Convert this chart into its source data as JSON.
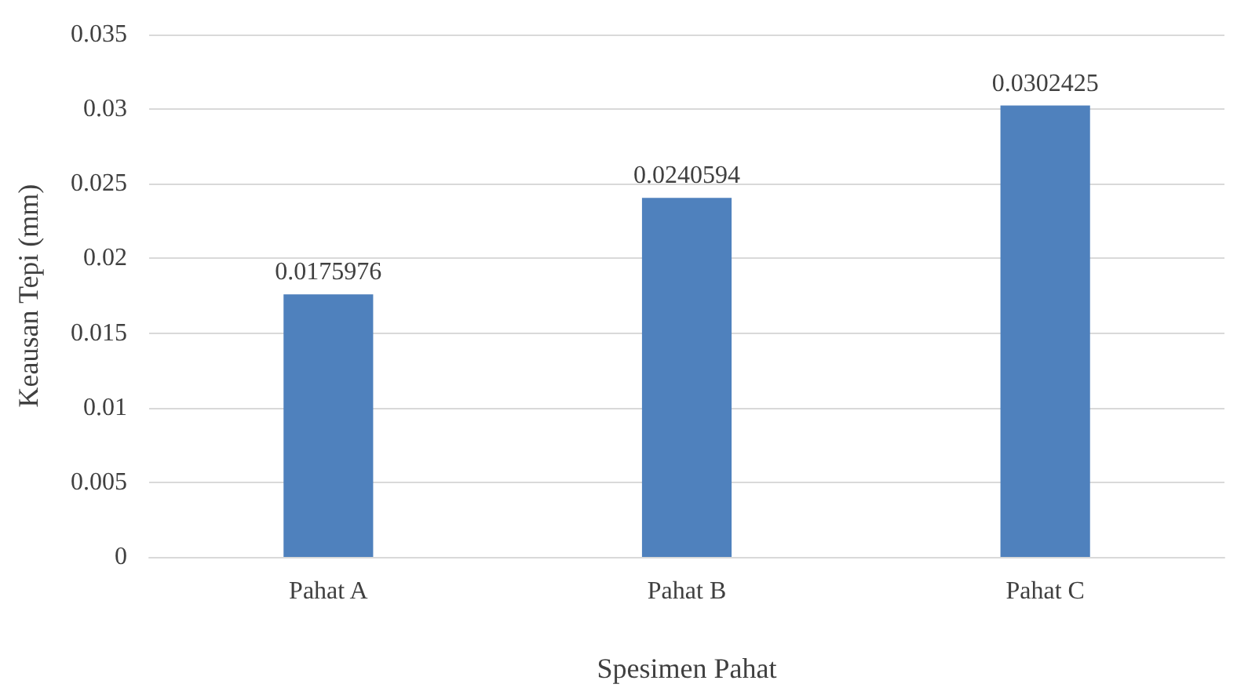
{
  "chart_data": {
    "type": "bar",
    "xlabel": "Spesimen Pahat",
    "ylabel": "Keausan Tepi (mm)",
    "categories": [
      "Pahat A",
      "Pahat B",
      "Pahat C"
    ],
    "values": [
      0.0175976,
      0.0240594,
      0.0302425
    ],
    "color": "#4f81bd",
    "ylim": [
      0,
      0.035
    ],
    "yticks": [
      0,
      0.005,
      0.01,
      0.015,
      0.02,
      0.025,
      0.03,
      0.035
    ],
    "grid": "y",
    "data_labels": true
  }
}
